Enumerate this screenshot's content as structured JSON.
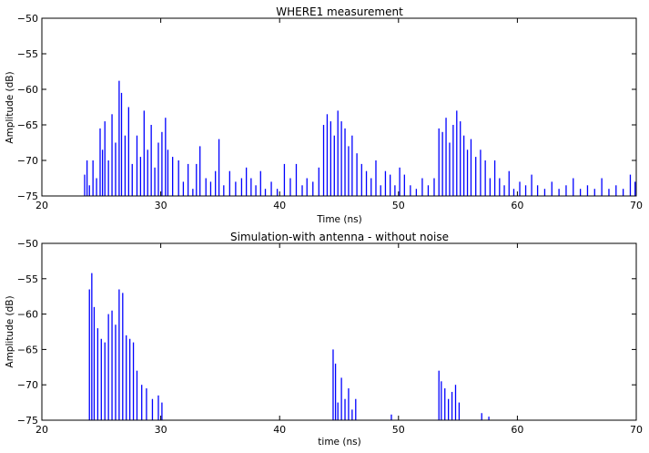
{
  "chart_data": [
    {
      "type": "line",
      "title": "WHERE1 measurement",
      "xlabel": "Time (ns)",
      "ylabel": "Amplitude (dB)",
      "xlim": [
        20,
        70
      ],
      "ylim": [
        -75,
        -50
      ],
      "xticks": [
        "20",
        "30",
        "40",
        "50",
        "60",
        "70"
      ],
      "yticks": [
        "−50",
        "−55",
        "−60",
        "−65",
        "−70",
        "−75"
      ],
      "grid": false,
      "color": "#0000ff",
      "series": [
        {
          "x": [
            23.6,
            23.8,
            24.0,
            24.3,
            24.6,
            24.9,
            25.1,
            25.3,
            25.6,
            25.9,
            26.2,
            26.5,
            26.7,
            27.0,
            27.3,
            27.6,
            28.0,
            28.3,
            28.6,
            28.9,
            29.2,
            29.5,
            29.8,
            30.1,
            30.4,
            30.6,
            31.0,
            31.5,
            31.9,
            32.3,
            32.7,
            33.0,
            33.3,
            33.8,
            34.2,
            34.6,
            34.9,
            35.3,
            35.8,
            36.3,
            36.8,
            37.2,
            37.6,
            38.0,
            38.4,
            38.8,
            39.3,
            39.8,
            40.4,
            40.9,
            41.4,
            41.9,
            42.3,
            42.8,
            43.3,
            43.7,
            44.0,
            44.3,
            44.6,
            44.9,
            45.2,
            45.5,
            45.8,
            46.1,
            46.5,
            46.9,
            47.3,
            47.7,
            48.1,
            48.5,
            48.9,
            49.3,
            49.7,
            50.1,
            50.5,
            51.0,
            51.5,
            52.0,
            52.5,
            53.0,
            53.4,
            53.7,
            54.0,
            54.3,
            54.6,
            54.9,
            55.2,
            55.5,
            55.8,
            56.1,
            56.5,
            56.9,
            57.3,
            57.7,
            58.1,
            58.5,
            58.9,
            59.3,
            59.7,
            60.2,
            60.7,
            61.2,
            61.7,
            62.3,
            62.9,
            63.5,
            64.1,
            64.7,
            65.3,
            65.9,
            66.5,
            67.1,
            67.7,
            68.3,
            68.9,
            69.5,
            69.9
          ],
          "y": [
            -72.0,
            -70.0,
            -73.5,
            -70.0,
            -72.5,
            -65.5,
            -68.5,
            -64.5,
            -70.0,
            -63.5,
            -67.5,
            -58.8,
            -60.5,
            -66.5,
            -62.5,
            -70.5,
            -66.5,
            -69.5,
            -63.0,
            -68.5,
            -65.0,
            -71.0,
            -67.5,
            -66.0,
            -64.0,
            -68.5,
            -69.5,
            -70.0,
            -73.0,
            -70.5,
            -74.0,
            -70.5,
            -68.0,
            -72.5,
            -73.0,
            -71.5,
            -67.0,
            -73.5,
            -71.5,
            -73.0,
            -72.5,
            -71.0,
            -72.5,
            -73.5,
            -71.5,
            -74.0,
            -73.0,
            -74.0,
            -70.5,
            -72.5,
            -70.5,
            -73.5,
            -72.5,
            -73.0,
            -71.0,
            -65.0,
            -63.5,
            -64.5,
            -66.5,
            -63.0,
            -64.5,
            -65.5,
            -68.0,
            -66.5,
            -69.0,
            -70.5,
            -71.5,
            -72.5,
            -70.0,
            -73.5,
            -71.5,
            -72.0,
            -73.5,
            -71.0,
            -72.0,
            -73.5,
            -74.0,
            -72.5,
            -73.5,
            -72.5,
            -65.5,
            -66.0,
            -64.0,
            -67.5,
            -65.0,
            -63.0,
            -64.5,
            -66.5,
            -68.5,
            -67.0,
            -69.5,
            -68.5,
            -70.0,
            -72.5,
            -70.0,
            -72.5,
            -73.5,
            -71.5,
            -74.0,
            -73.0,
            -73.5,
            -72.0,
            -73.5,
            -74.0,
            -73.0,
            -74.0,
            -73.5,
            -72.5,
            -74.0,
            -73.5,
            -74.0,
            -72.5,
            -74.0,
            -73.5,
            -74.0,
            -72.0,
            -73.0
          ]
        }
      ]
    },
    {
      "type": "line",
      "title": "Simulation-with antenna - without noise",
      "xlabel": "time (ns)",
      "ylabel": "Amplitude (dB)",
      "xlim": [
        20,
        70
      ],
      "ylim": [
        -75,
        -50
      ],
      "xticks": [
        "20",
        "30",
        "40",
        "50",
        "60",
        "70"
      ],
      "yticks": [
        "−50",
        "−55",
        "−60",
        "−65",
        "−70",
        "−75"
      ],
      "grid": false,
      "color": "#0000ff",
      "series": [
        {
          "x": [
            24.0,
            24.2,
            24.4,
            24.7,
            25.0,
            25.3,
            25.6,
            25.9,
            26.2,
            26.5,
            26.8,
            27.1,
            27.4,
            27.7,
            28.0,
            28.4,
            28.8,
            29.3,
            29.8,
            30.1,
            44.5,
            44.7,
            44.9,
            45.2,
            45.5,
            45.8,
            46.1,
            46.4,
            49.4,
            53.4,
            53.6,
            53.9,
            54.2,
            54.5,
            54.8,
            55.1,
            57.0,
            57.6
          ],
          "y": [
            -56.5,
            -54.2,
            -59.0,
            -62.0,
            -63.5,
            -64.0,
            -60.0,
            -59.5,
            -61.5,
            -56.5,
            -57.0,
            -63.0,
            -63.5,
            -64.0,
            -68.0,
            -70.0,
            -70.5,
            -72.0,
            -71.5,
            -72.5,
            -65.0,
            -67.0,
            -72.5,
            -69.0,
            -72.0,
            -70.5,
            -73.5,
            -72.0,
            -74.2,
            -68.0,
            -69.5,
            -70.5,
            -72.0,
            -71.0,
            -70.0,
            -72.5,
            -74.0,
            -74.5
          ]
        }
      ]
    }
  ]
}
